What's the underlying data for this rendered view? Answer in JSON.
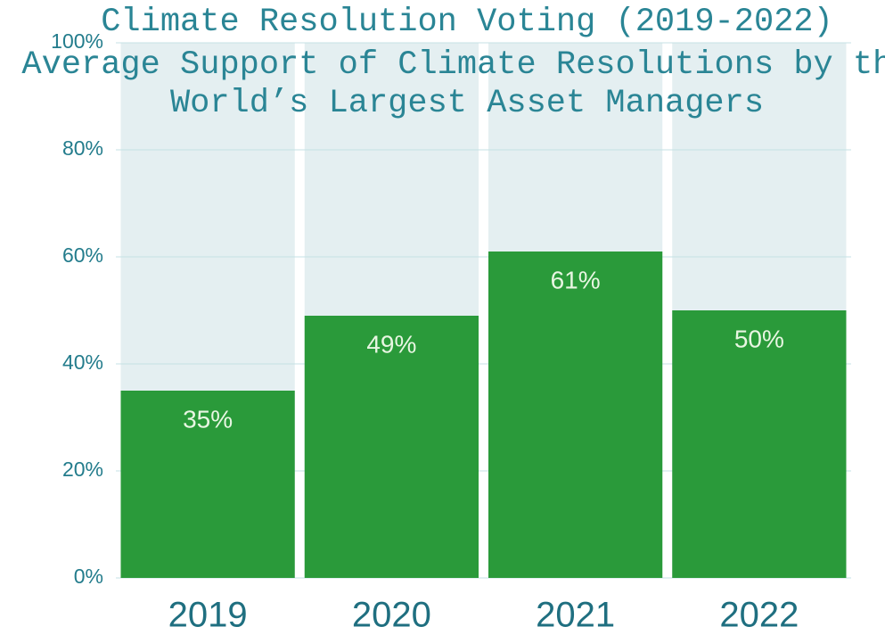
{
  "chart_data": {
    "type": "bar",
    "title": "Climate Resolution Voting (2019-2022)",
    "subtitle": [
      "Average Support of Climate Resolutions by the",
      "World’s Largest Asset Managers"
    ],
    "categories": [
      "2019",
      "2020",
      "2021",
      "2022"
    ],
    "values": [
      35,
      49,
      61,
      50
    ],
    "value_labels": [
      "35%",
      "49%",
      "61%",
      "50%"
    ],
    "color": "#2a9a3a",
    "ylim": [
      0,
      100
    ],
    "yticks": [
      {
        "value": 0,
        "label": "0%"
      },
      {
        "value": 20,
        "label": "20%"
      },
      {
        "value": 40,
        "label": "40%"
      },
      {
        "value": 60,
        "label": "60%"
      },
      {
        "value": 80,
        "label": "80%"
      },
      {
        "value": 100,
        "label": "100%"
      }
    ],
    "grid": true
  }
}
